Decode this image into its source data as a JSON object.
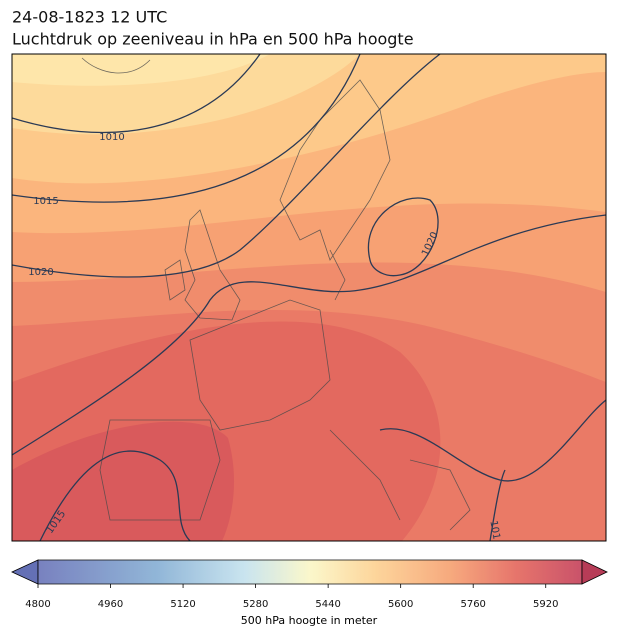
{
  "header": {
    "timestamp": "24-08-1823 12 UTC",
    "title": "Luchtdruk op zeeniveau in hPa en 500 hPa hoogte"
  },
  "map": {
    "contour_labels": [
      "1010",
      "1015",
      "1020",
      "1020",
      "1015",
      "101"
    ]
  },
  "colorbar": {
    "range": [
      4800,
      6000
    ],
    "ticks": [
      4800,
      4960,
      5120,
      5280,
      5440,
      5600,
      5760,
      5920
    ],
    "label": "500 hPa hoogte in meter"
  }
}
